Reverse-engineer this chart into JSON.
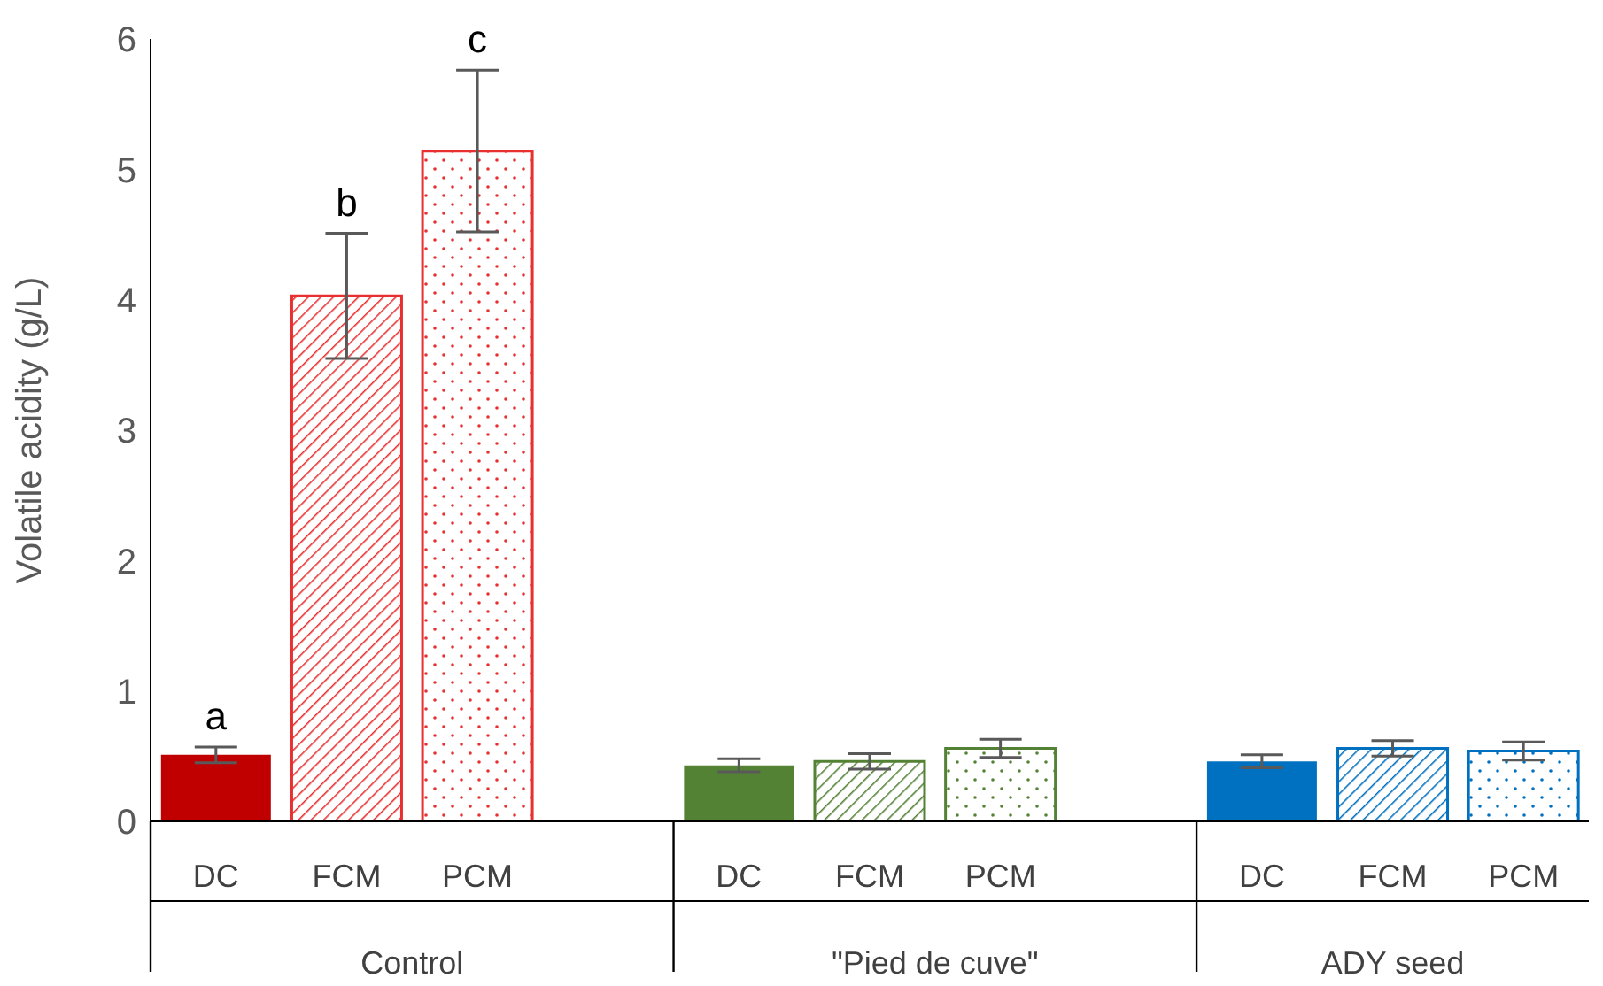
{
  "chart_data": {
    "type": "bar",
    "ylabel": "Volatile acidity (g/L)",
    "categories": [
      "DC",
      "FCM",
      "PCM",
      null,
      "DC",
      "FCM",
      "PCM",
      null,
      "DC",
      "FCM",
      "PCM"
    ],
    "values": [
      0.51,
      4.03,
      5.14,
      null,
      0.43,
      0.46,
      0.56,
      null,
      0.46,
      0.56,
      0.54
    ],
    "errors": [
      0.06,
      0.48,
      0.62,
      null,
      0.05,
      0.06,
      0.07,
      null,
      0.05,
      0.06,
      0.07
    ],
    "colors": [
      "#c00000",
      "#e83030",
      "#e83030",
      null,
      "#548235",
      "#548235",
      "#548235",
      null,
      "#0070c0",
      "#0070c0",
      "#0070c0"
    ],
    "ylim": [
      0,
      6
    ],
    "yticks": [
      0,
      1,
      2,
      3,
      4,
      5,
      6
    ],
    "grid": false,
    "legend": false,
    "annotations": [
      {
        "text": "a",
        "x": "DC",
        "y": 0.57
      },
      {
        "text": "b",
        "x": "FCM",
        "y": 4.51
      },
      {
        "text": "c",
        "x": "PCM",
        "y": 5.76
      },
      "Control",
      "\"Pied de cuve\"",
      "ADY seed"
    ]
  }
}
